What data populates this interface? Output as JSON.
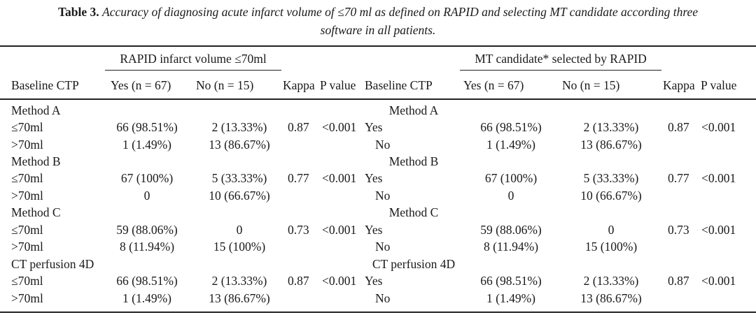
{
  "caption": {
    "label": "Table 3.",
    "text_line1": "Accuracy of diagnosing acute infarct volume of ≤70 ml as defined on RAPID and selecting MT candidate according three",
    "text_line2": "software in all patients."
  },
  "left": {
    "group_header": "RAPID infarct volume ≤70ml",
    "columns": [
      "Baseline CTP",
      "Yes (n = 67)",
      "No (n = 15)",
      "Kappa",
      "P value"
    ],
    "groups": [
      {
        "method": "Method A",
        "rows": [
          {
            "label": "≤70ml",
            "yes": "66 (98.51%)",
            "no": "2 (13.33%)",
            "kappa": "0.87",
            "p": "<0.001"
          },
          {
            "label": ">70ml",
            "yes": "1 (1.49%)",
            "no": "13 (86.67%)"
          }
        ]
      },
      {
        "method": "Method B",
        "rows": [
          {
            "label": "≤70ml",
            "yes": "67 (100%)",
            "no": "5 (33.33%)",
            "kappa": "0.77",
            "p": "<0.001"
          },
          {
            "label": ">70ml",
            "yes": "0",
            "no": "10 (66.67%)"
          }
        ]
      },
      {
        "method": "Method C",
        "rows": [
          {
            "label": "≤70ml",
            "yes": "59 (88.06%)",
            "no": "0",
            "kappa": "0.73",
            "p": "<0.001"
          },
          {
            "label": ">70ml",
            "yes": "8 (11.94%)",
            "no": "15 (100%)"
          }
        ]
      },
      {
        "method": "CT perfusion 4D",
        "rows": [
          {
            "label": "≤70ml",
            "yes": "66 (98.51%)",
            "no": "2 (13.33%)",
            "kappa": "0.87",
            "p": "<0.001"
          },
          {
            "label": ">70ml",
            "yes": "1 (1.49%)",
            "no": "13 (86.67%)"
          }
        ]
      }
    ]
  },
  "right": {
    "group_header": "MT candidate* selected by RAPID",
    "columns": [
      "Baseline CTP",
      "Yes (n = 67)",
      "No (n = 15)",
      "Kappa",
      "P value"
    ],
    "groups": [
      {
        "method": "Method A",
        "rows": [
          {
            "label": "Yes",
            "yes": "66 (98.51%)",
            "no": "2 (13.33%)",
            "kappa": "0.87",
            "p": "<0.001"
          },
          {
            "label": "No",
            "yes": "1 (1.49%)",
            "no": "13 (86.67%)"
          }
        ]
      },
      {
        "method": "Method B",
        "rows": [
          {
            "label": "Yes",
            "yes": "67 (100%)",
            "no": "5 (33.33%)",
            "kappa": "0.77",
            "p": "<0.001"
          },
          {
            "label": "No",
            "yes": "0",
            "no": "10 (66.67%)"
          }
        ]
      },
      {
        "method": "Method C",
        "rows": [
          {
            "label": "Yes",
            "yes": "59 (88.06%)",
            "no": "0",
            "kappa": "0.73",
            "p": "<0.001"
          },
          {
            "label": "No",
            "yes": "8 (11.94%)",
            "no": "15 (100%)"
          }
        ]
      },
      {
        "method": "CT perfusion 4D",
        "rows": [
          {
            "label": "Yes",
            "yes": "66 (98.51%)",
            "no": "2 (13.33%)",
            "kappa": "0.87",
            "p": "<0.001"
          },
          {
            "label": "No",
            "yes": "1 (1.49%)",
            "no": "13 (86.67%)"
          }
        ]
      }
    ]
  }
}
